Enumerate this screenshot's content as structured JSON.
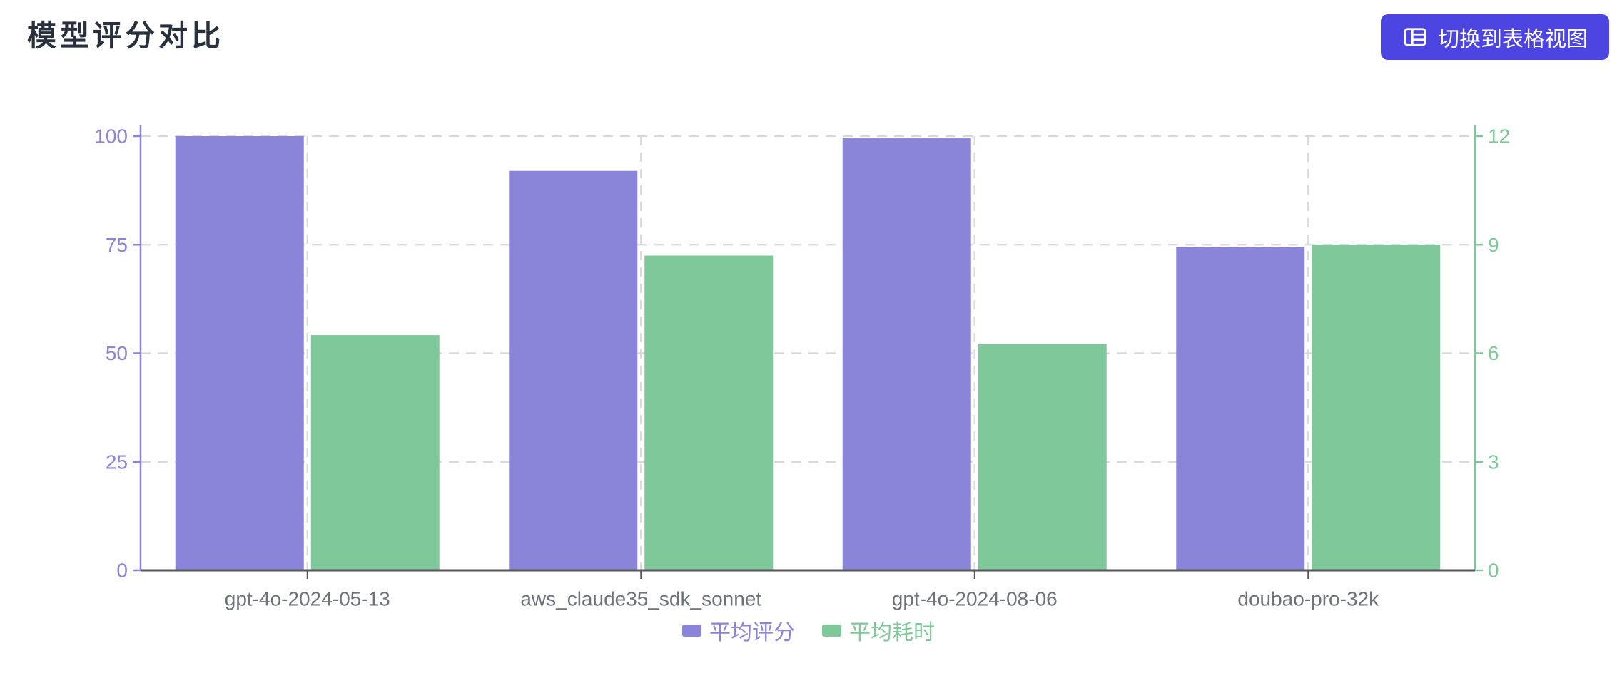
{
  "header": {
    "title": "模型评分对比",
    "toggle_button": {
      "label": "切换到表格视图",
      "icon": "table-icon",
      "bg_color": "#4c45e2",
      "text_color": "#ffffff"
    }
  },
  "chart_data": {
    "type": "bar",
    "title": "模型评分对比",
    "categories": [
      "gpt-4o-2024-05-13",
      "aws_claude35_sdk_sonnet",
      "gpt-4o-2024-08-06",
      "doubao-pro-32k"
    ],
    "series": [
      {
        "name": "平均评分",
        "axis": "left",
        "color": "#8a85d8",
        "values": [
          100,
          92,
          99.5,
          74.5
        ]
      },
      {
        "name": "平均耗时",
        "axis": "right",
        "color": "#7fc89a",
        "values": [
          6.5,
          8.7,
          6.25,
          9
        ]
      }
    ],
    "left_axis": {
      "ticks": [
        0,
        25,
        50,
        75,
        100
      ],
      "range": [
        0,
        100
      ],
      "color": "#8a85d8"
    },
    "right_axis": {
      "ticks": [
        0,
        3,
        6,
        9,
        12
      ],
      "range": [
        0,
        12
      ],
      "color": "#7fc89a"
    },
    "x_axis": {
      "label_color": "#6e737a",
      "line_color": "#55595f"
    },
    "grid": {
      "show": true,
      "dashed": true,
      "color": "#d6d8db"
    },
    "legend": [
      {
        "label": "平均评分",
        "color": "#8a85d8"
      },
      {
        "label": "平均耗时",
        "color": "#7fc89a"
      }
    ],
    "legend_position": "bottom-center"
  }
}
